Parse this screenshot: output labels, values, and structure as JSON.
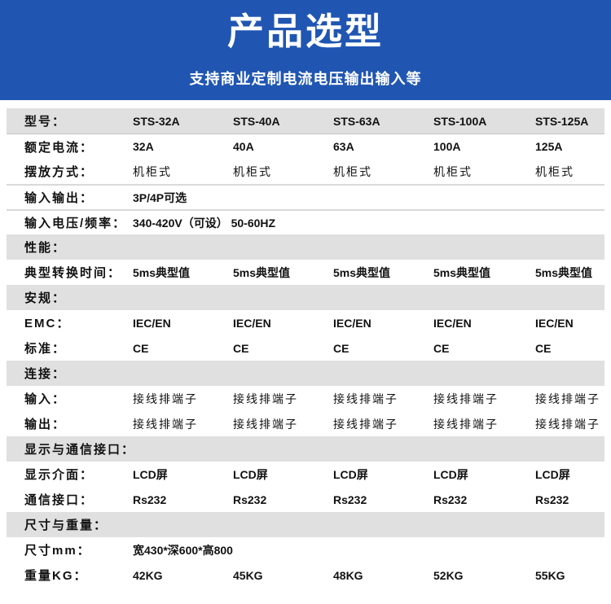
{
  "banner": {
    "title": "产品选型",
    "subtitle": "支持商业定制电流电压输出输入等",
    "bg_color": "#2056b2",
    "text_color": "#ffffff"
  },
  "table": {
    "section_bg_color": "#e0e0e0",
    "rows": [
      {
        "kind": "data",
        "label": "型号：",
        "values": [
          "STS-32A",
          "STS-40A",
          "STS-63A",
          "STS-100A",
          "STS-125A"
        ],
        "gray": true
      },
      {
        "kind": "data",
        "label": "额定电流：",
        "values": [
          "32A",
          "40A",
          "63A",
          "100A",
          "125A"
        ],
        "line": 1
      },
      {
        "kind": "data",
        "label": "摆放方式：",
        "values": [
          "机柜式",
          "机柜式",
          "机柜式",
          "机柜式",
          "机柜式"
        ],
        "light": true
      },
      {
        "kind": "span",
        "label": "输入输出：",
        "value": "3P/4P可选",
        "line": 2
      },
      {
        "kind": "span",
        "label": "输入电压/频率：",
        "value": "340-420V（可设）  50-60HZ",
        "line": 2
      },
      {
        "kind": "section",
        "label": "性能："
      },
      {
        "kind": "data",
        "label": "典型转换时间：",
        "values": [
          "5ms典型值",
          "5ms典型值",
          "5ms典型值",
          "5ms典型值",
          "5ms典型值"
        ]
      },
      {
        "kind": "section",
        "label": "安规："
      },
      {
        "kind": "data",
        "label": "EMC：",
        "values": [
          "IEC/EN",
          "IEC/EN",
          "IEC/EN",
          "IEC/EN",
          "IEC/EN"
        ]
      },
      {
        "kind": "data",
        "label": "标准：",
        "values": [
          "CE",
          "CE",
          "CE",
          "CE",
          "CE"
        ]
      },
      {
        "kind": "section",
        "label": "连接："
      },
      {
        "kind": "data",
        "label": "输入：",
        "values": [
          "接线排端子",
          "接线排端子",
          "接线排端子",
          "接线排端子",
          "接线排端子"
        ],
        "light": true
      },
      {
        "kind": "data",
        "label": "输出：",
        "values": [
          "接线排端子",
          "接线排端子",
          "接线排端子",
          "接线排端子",
          "接线排端子"
        ],
        "light": true
      },
      {
        "kind": "section",
        "label": "显示与通信接口："
      },
      {
        "kind": "data",
        "label": "显示介面：",
        "values": [
          "LCD屏",
          "LCD屏",
          "LCD屏",
          "LCD屏",
          "LCD屏"
        ]
      },
      {
        "kind": "data",
        "label": "通信接口：",
        "values": [
          "Rs232",
          "Rs232",
          "Rs232",
          "Rs232",
          "Rs232"
        ]
      },
      {
        "kind": "section",
        "label": "尺寸与重量："
      },
      {
        "kind": "span",
        "label": "尺寸mm：",
        "value": "宽430*深600*高800"
      },
      {
        "kind": "data",
        "label": "重量KG：",
        "values": [
          "42KG",
          "45KG",
          "48KG",
          "52KG",
          "55KG"
        ]
      }
    ]
  }
}
